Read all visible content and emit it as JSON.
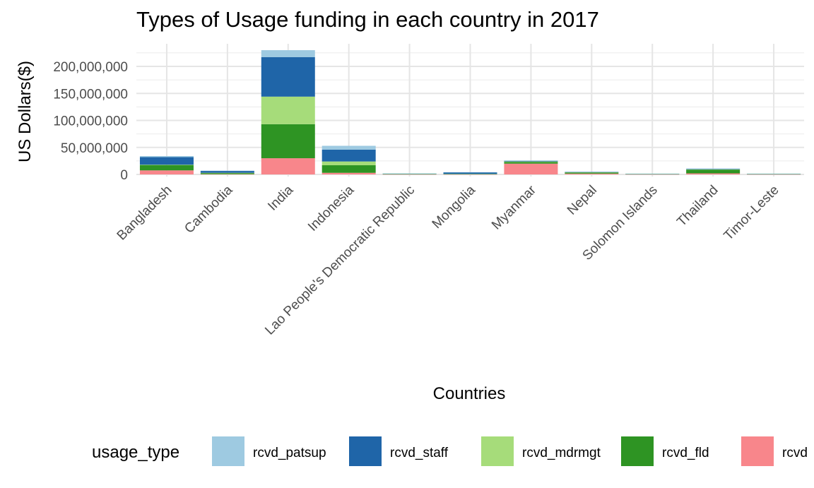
{
  "chart_data": {
    "type": "bar",
    "stacked": true,
    "title": "Types of Usage funding in each country in 2017",
    "xlabel": "Countries",
    "ylabel": "US Dollars($)",
    "ylim": [
      0,
      230000000
    ],
    "yticks": [
      0,
      50000000,
      100000000,
      150000000,
      200000000
    ],
    "ytick_labels": [
      "0",
      "50,000,000",
      "100,000,000",
      "150,000,000",
      "200,000,000"
    ],
    "grid": true,
    "legend_position": "bottom",
    "legend_title": "usage_type",
    "categories": [
      "Bangladesh",
      "Cambodia",
      "India",
      "Indonesia",
      "Lao People's Democratic Republic",
      "Mongolia",
      "Myanmar",
      "Nepal",
      "Solomon Islands",
      "Thailand",
      "Timor-Leste"
    ],
    "series": [
      {
        "name": "rcvd_patsup",
        "color": "#9ecae1",
        "values": [
          2000000,
          500000,
          13000000,
          7000000,
          300000,
          300000,
          1000000,
          500000,
          300000,
          1000000,
          300000
        ]
      },
      {
        "name": "rcvd_staff",
        "color": "#1f65a8",
        "values": [
          14000000,
          3500000,
          73000000,
          22000000,
          700000,
          3000000,
          1000000,
          500000,
          300000,
          500000,
          300000
        ]
      },
      {
        "name": "rcvd_mdrmgt",
        "color": "#a6dc7a",
        "values": [
          500000,
          500000,
          51000000,
          7000000,
          200000,
          200000,
          1000000,
          500000,
          200000,
          500000,
          200000
        ]
      },
      {
        "name": "rcvd_fld",
        "color": "#2e9423",
        "values": [
          10000000,
          2000000,
          63000000,
          14000000,
          500000,
          500000,
          3000000,
          2000000,
          500000,
          7000000,
          500000
        ]
      },
      {
        "name": "rcvd",
        "color": "#f8868b",
        "values": [
          7500000,
          500000,
          30000000,
          3000000,
          200000,
          200000,
          20000000,
          1500000,
          200000,
          2000000,
          200000
        ]
      }
    ]
  }
}
